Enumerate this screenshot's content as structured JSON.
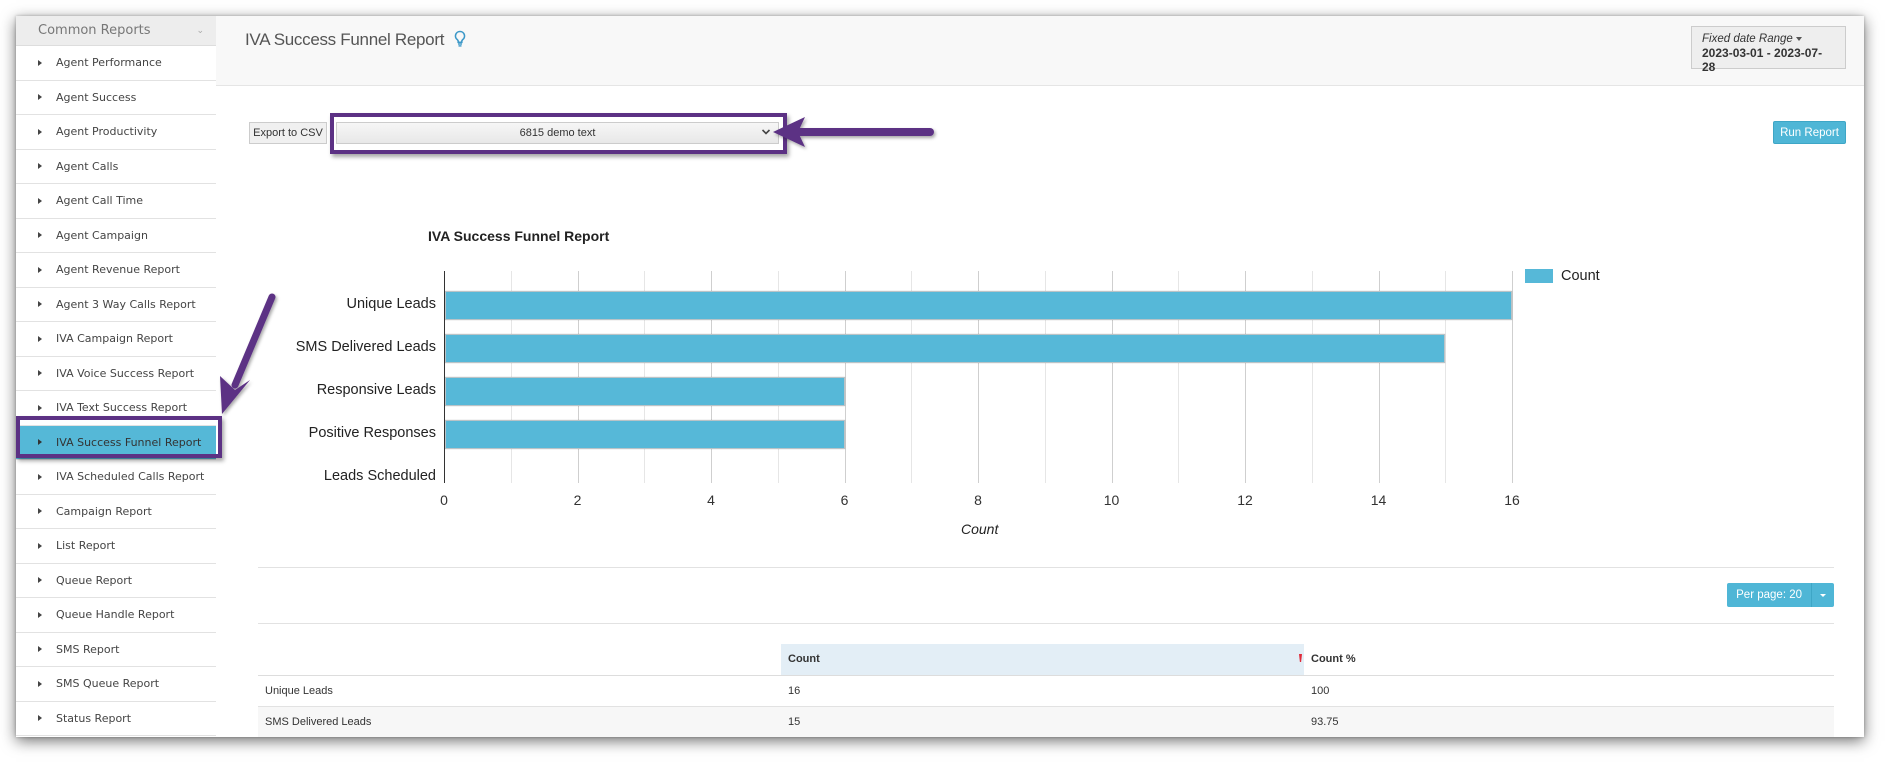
{
  "sidebar": {
    "header": "Common Reports",
    "items": [
      {
        "label": "Agent Performance"
      },
      {
        "label": "Agent Success"
      },
      {
        "label": "Agent Productivity"
      },
      {
        "label": "Agent Calls"
      },
      {
        "label": "Agent Call Time"
      },
      {
        "label": "Agent Campaign"
      },
      {
        "label": "Agent Revenue Report"
      },
      {
        "label": "Agent 3 Way Calls Report"
      },
      {
        "label": "IVA Campaign Report"
      },
      {
        "label": "IVA Voice Success Report"
      },
      {
        "label": "IVA Text Success Report"
      },
      {
        "label": "IVA Success Funnel Report",
        "active": true
      },
      {
        "label": "IVA Scheduled Calls Report"
      },
      {
        "label": "Campaign Report"
      },
      {
        "label": "List Report"
      },
      {
        "label": "Queue Report"
      },
      {
        "label": "Queue Handle Report"
      },
      {
        "label": "SMS Report"
      },
      {
        "label": "SMS Queue Report"
      },
      {
        "label": "Status Report"
      }
    ]
  },
  "header": {
    "title": "IVA Success Funnel Report",
    "date_range_label": "Fixed date Range",
    "date_range_value": "2023-03-01 - 2023-07-28"
  },
  "toolbar": {
    "export_label": "Export to CSV",
    "selected_report": "6815 demo text",
    "run_label": "Run Report"
  },
  "colors": {
    "accent": "#4fb6d6",
    "bar": "#56b8d8",
    "annotation": "#5c3184",
    "sort_indicator": "#e02b3a"
  },
  "chart_data": {
    "type": "bar",
    "orientation": "horizontal",
    "title": "IVA Success Funnel Report",
    "categories": [
      "Unique Leads",
      "SMS Delivered Leads",
      "Responsive Leads",
      "Positive Responses",
      "Leads Scheduled"
    ],
    "series": [
      {
        "name": "Count",
        "values": [
          16,
          15,
          6,
          6,
          0
        ]
      }
    ],
    "xlabel": "Count",
    "ylabel": "",
    "xlim": [
      0,
      16
    ],
    "xticks": [
      "0",
      "2",
      "4",
      "6",
      "8",
      "10",
      "12",
      "14",
      "16"
    ],
    "grid": true,
    "legend_position": "right"
  },
  "table": {
    "per_page_label": "Per page: 20",
    "columns": [
      "",
      "Count",
      "Count %"
    ],
    "rows": [
      [
        "Unique Leads",
        "16",
        "100"
      ],
      [
        "SMS Delivered Leads",
        "15",
        "93.75"
      ]
    ]
  }
}
